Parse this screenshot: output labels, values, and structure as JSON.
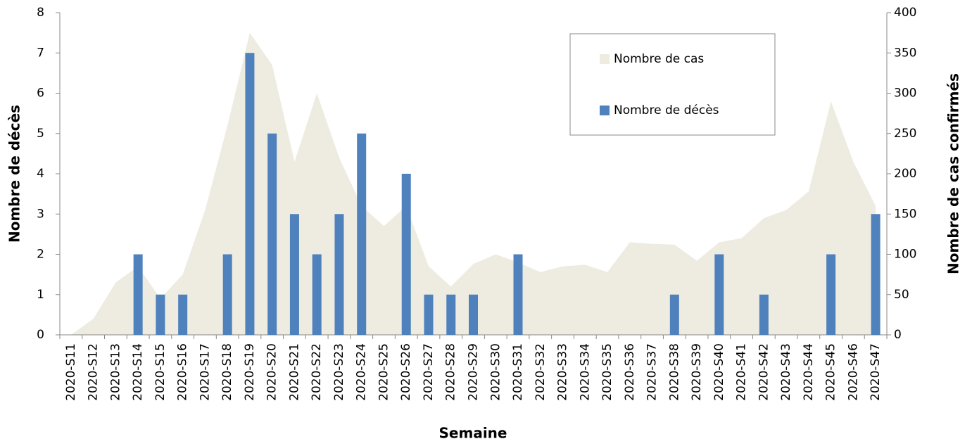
{
  "chart_data": {
    "type": "bar_area",
    "xlabel": "Semaine",
    "ylabel": "Nombre de décès",
    "y2label": "Nombre de cas confirmés",
    "categories": [
      "2020-S11",
      "2020-S12",
      "2020-S13",
      "2020-S14",
      "2020-S15",
      "2020-S16",
      "2020-S17",
      "2020-S18",
      "2020-S19",
      "2020-S20",
      "2020-S21",
      "2020-S22",
      "2020-S23",
      "2020-S24",
      "2020-S25",
      "2020-S26",
      "2020-S27",
      "2020-S28",
      "2020-S29",
      "2020-S30",
      "2020-S31",
      "2020-S32",
      "2020-S33",
      "2020-S34",
      "2020-S35",
      "2020-S36",
      "2020-S37",
      "2020-S38",
      "2020-S39",
      "2020-S40",
      "2020-S41",
      "2020-S42",
      "2020-S43",
      "2020-S44",
      "2020-S45",
      "2020-S46",
      "2020-S47"
    ],
    "series": [
      {
        "name": "Nombre de cas",
        "color": "#eeece1",
        "axis": "y2",
        "kind": "area",
        "values": [
          0,
          20,
          65,
          85,
          45,
          75,
          155,
          260,
          375,
          335,
          215,
          300,
          220,
          160,
          135,
          160,
          85,
          60,
          88,
          100,
          90,
          78,
          85,
          87,
          78,
          115,
          113,
          112,
          92,
          115,
          120,
          145,
          155,
          178,
          290,
          215,
          160
        ]
      },
      {
        "name": "Nombre de décès",
        "color": "#4f81bd",
        "kind": "bar",
        "values": [
          0,
          0,
          0,
          2,
          1,
          1,
          0,
          2,
          7,
          5,
          3,
          2,
          3,
          5,
          0,
          4,
          1,
          1,
          1,
          0,
          2,
          0,
          0,
          0,
          0,
          0,
          0,
          1,
          0,
          2,
          0,
          1,
          0,
          0,
          2,
          0,
          3
        ]
      }
    ],
    "ylim": [
      0,
      8
    ],
    "yticks": [
      0,
      1,
      2,
      3,
      4,
      5,
      6,
      7,
      8
    ],
    "y2lim": [
      0,
      400
    ],
    "y2ticks": [
      0,
      50,
      100,
      150,
      200,
      250,
      300,
      350,
      400
    ]
  }
}
